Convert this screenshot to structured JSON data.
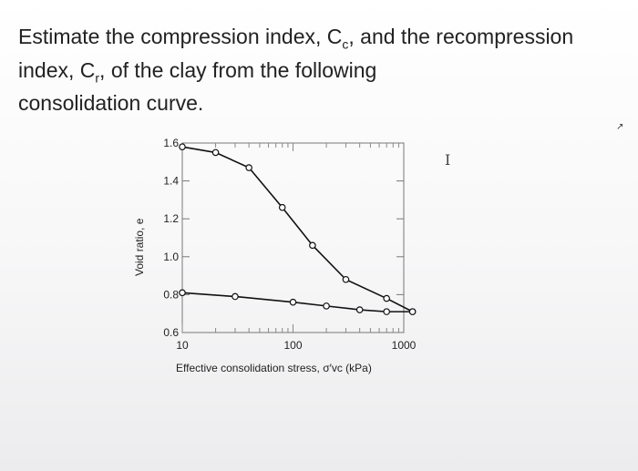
{
  "question": {
    "line1_a": "Estimate the compression index, C",
    "line1_sub": "c",
    "line1_b": ", and the recompression",
    "line2_a": "index, C",
    "line2_sub": "r",
    "line2_b": ", of the clay from the following",
    "line3": "consolidation curve."
  },
  "cursor_glyph": "I",
  "corner_glyph": "↗",
  "chart_data": {
    "type": "line",
    "x_scale": "log",
    "xlim": [
      10,
      1000
    ],
    "ylim": [
      0.6,
      1.6
    ],
    "x_ticks": [
      10,
      100,
      1000
    ],
    "x_tick_labels": [
      "10",
      "100",
      "1000"
    ],
    "y_ticks": [
      0.6,
      0.8,
      1.0,
      1.2,
      1.4,
      1.6
    ],
    "y_tick_labels": [
      "0.6",
      "0.8",
      "1.0",
      "1.2",
      "1.4",
      "1.6"
    ],
    "xlabel": "Effective consolidation stress, σ′vc (kPa)",
    "ylabel": "Void ratio, e",
    "grid": false,
    "series": [
      {
        "x": [
          10,
          20,
          40,
          80,
          150,
          300,
          700,
          1200
        ],
        "y": [
          1.58,
          1.55,
          1.47,
          1.26,
          1.06,
          0.88,
          0.78,
          0.71
        ],
        "marker": "circle",
        "color": "#111111"
      },
      {
        "x": [
          10,
          30,
          100,
          200,
          400,
          700,
          1200
        ],
        "y": [
          0.81,
          0.79,
          0.76,
          0.74,
          0.72,
          0.71,
          0.71
        ],
        "marker": "circle",
        "color": "#111111"
      }
    ]
  }
}
